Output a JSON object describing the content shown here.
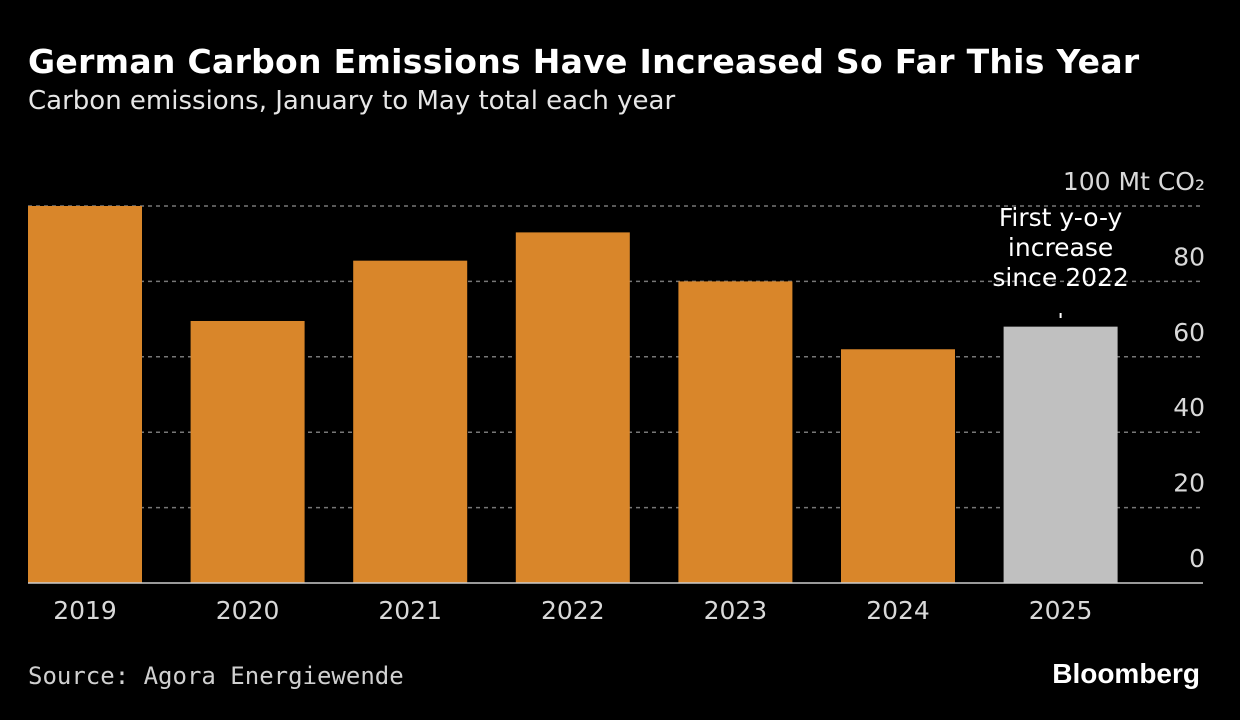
{
  "chart_data": {
    "type": "bar",
    "title": "German Carbon Emissions Have Increased So Far This Year",
    "subtitle": "Carbon emissions, January to May total each year",
    "categories": [
      "2019",
      "2020",
      "2021",
      "2022",
      "2023",
      "2024",
      "2025"
    ],
    "values": [
      100,
      69.5,
      85.5,
      93,
      80,
      62,
      68
    ],
    "colors": [
      "#d9862a",
      "#d9862a",
      "#d9862a",
      "#d9862a",
      "#d9862a",
      "#d9862a",
      "#c0c0c0"
    ],
    "ylim": [
      0,
      100
    ],
    "yticks": [
      {
        "value": 0,
        "label": "0"
      },
      {
        "value": 20,
        "label": "20"
      },
      {
        "value": 40,
        "label": "40"
      },
      {
        "value": 60,
        "label": "60"
      },
      {
        "value": 80,
        "label": "80"
      },
      {
        "value": 100,
        "label": "100 Mt CO₂"
      }
    ],
    "grid": true,
    "annotation": {
      "category": "2025",
      "lines": [
        "First y-o-y",
        "increase",
        "since 2022"
      ]
    }
  },
  "footer": {
    "source": "Source: Agora Energiewende",
    "logo": "Bloomberg"
  }
}
